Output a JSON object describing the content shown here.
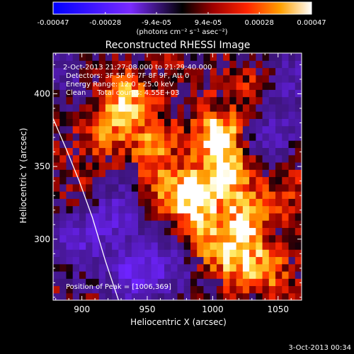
{
  "colorbar": {
    "ticks": [
      "-0.00047",
      "-0.00028",
      "-9.4e-05",
      "9.4e-05",
      "0.00028",
      "0.00047"
    ],
    "tick_values": [
      -0.00047,
      -0.00028,
      -9.4e-05,
      9.4e-05,
      0.00028,
      0.00047
    ],
    "unit_label": "(photons cm⁻² s⁻¹ asec⁻²)"
  },
  "header": {
    "line1": "2-Oct-2013 21:27:08.000 to 21:29:40.000",
    "line2": "Detectors: 3F 5F 6F 7F 8F 9F, Att 0",
    "line3": "Energy Range: 12.0 - 25.0 keV",
    "line4": "Clean     Total counts: 4.55E+03"
  },
  "peak_label": "Position of Peak = [1006,369]",
  "footer_timestamp": "3-Oct-2013 00:34",
  "chart_data": {
    "type": "heatmap",
    "title": "Reconstructed RHESSI Image",
    "xlabel": "Heliocentric X (arcsec)",
    "ylabel": "Heliocentric Y (arcsec)",
    "xlim": [
      878,
      1068
    ],
    "ylim": [
      258,
      428
    ],
    "xticks": [
      900,
      950,
      1000,
      1050
    ],
    "yticks": [
      300,
      350,
      400
    ],
    "colormap": "IDL red temperature (blue-purple negative to black, red, orange, yellow, white positive)",
    "peak": [
      1006,
      369
    ],
    "limb_curve": [
      [
        878,
        383
      ],
      [
        888,
        362
      ],
      [
        898,
        340
      ],
      [
        908,
        315
      ],
      [
        918,
        285
      ],
      [
        928,
        258
      ]
    ],
    "bright_sources": [
      {
        "x": 1004,
        "y": 371,
        "intensity": 1.0
      },
      {
        "x": 988,
        "y": 330,
        "intensity": 0.95
      },
      {
        "x": 1012,
        "y": 345,
        "intensity": 0.8
      },
      {
        "x": 1025,
        "y": 315,
        "intensity": 0.7
      },
      {
        "x": 1015,
        "y": 290,
        "intensity": 0.75
      },
      {
        "x": 1040,
        "y": 280,
        "intensity": 0.55
      },
      {
        "x": 935,
        "y": 395,
        "intensity": 0.7
      },
      {
        "x": 955,
        "y": 362,
        "intensity": 0.6
      },
      {
        "x": 920,
        "y": 375,
        "intensity": 0.45
      },
      {
        "x": 965,
        "y": 330,
        "intensity": 0.5
      },
      {
        "x": 990,
        "y": 300,
        "intensity": 0.55
      },
      {
        "x": 905,
        "y": 330,
        "intensity": 0.3
      },
      {
        "x": 1055,
        "y": 335,
        "intensity": 0.25
      },
      {
        "x": 1030,
        "y": 405,
        "intensity": 0.3
      }
    ],
    "negative_sources": [
      {
        "x": 940,
        "y": 275,
        "intensity": 0.9
      },
      {
        "x": 925,
        "y": 320,
        "intensity": 0.7
      },
      {
        "x": 895,
        "y": 300,
        "intensity": 0.7
      },
      {
        "x": 1045,
        "y": 370,
        "intensity": 0.6
      },
      {
        "x": 1060,
        "y": 410,
        "intensity": 0.5
      },
      {
        "x": 970,
        "y": 285,
        "intensity": 0.5
      },
      {
        "x": 885,
        "y": 415,
        "intensity": 0.45
      }
    ]
  }
}
